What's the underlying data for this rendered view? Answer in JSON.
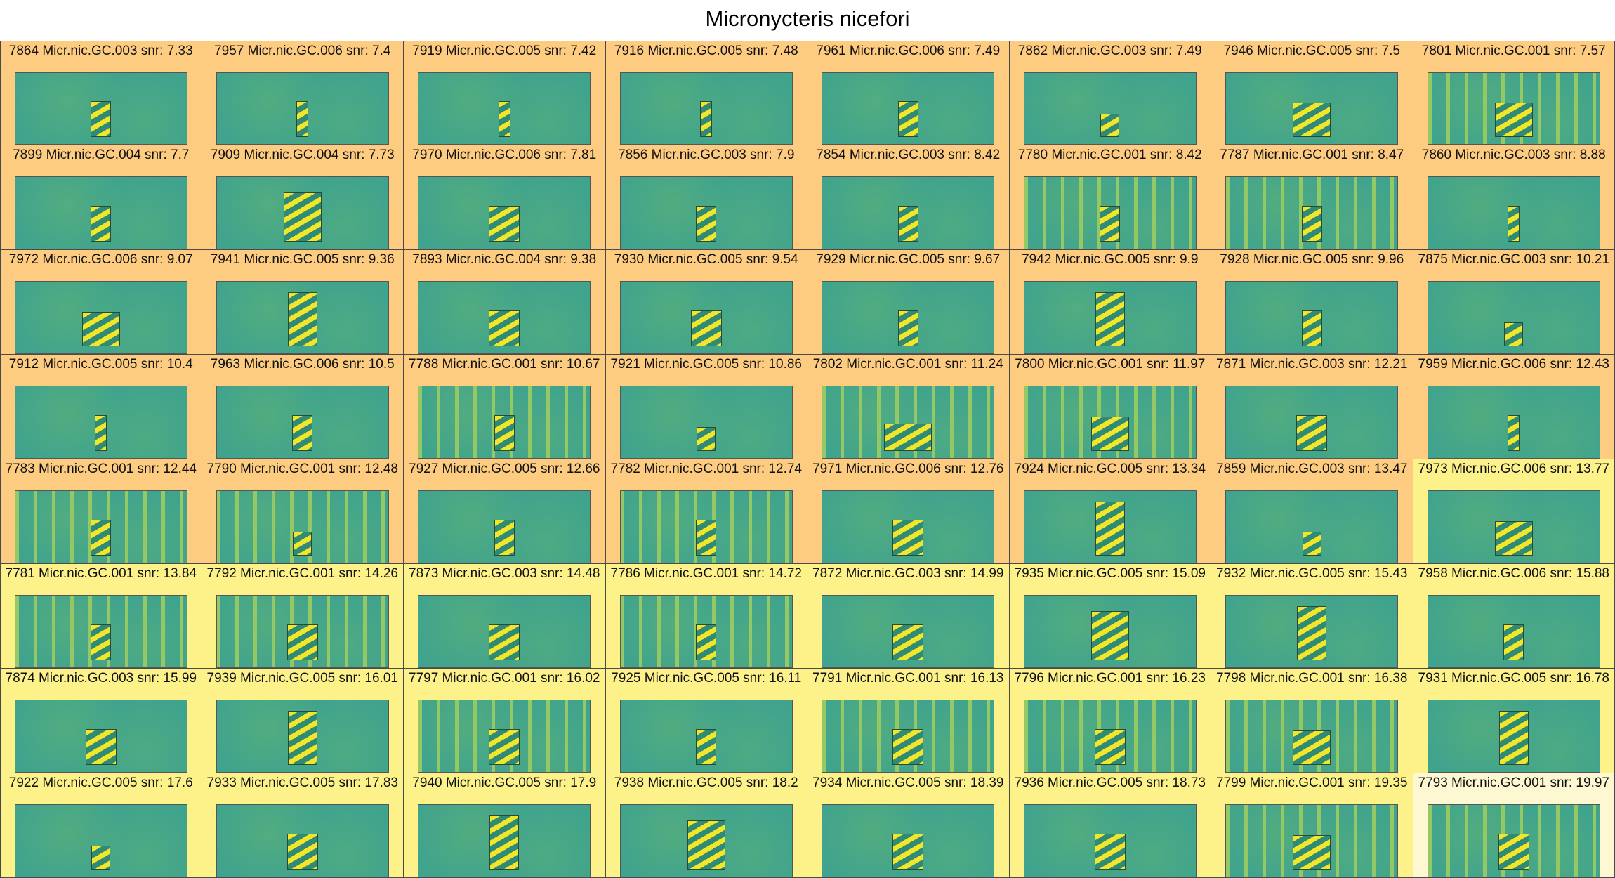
{
  "title": "Micronycteris nicefori",
  "colors": {
    "orange": "#fdcc80",
    "yellow": "#fdf28a",
    "light": "#fdf7d2",
    "spec_bg": "#3fa38d",
    "spec_fg": "#f2e62a"
  },
  "cells": [
    {
      "label": "7864 Micr.nic.GC.003 snr: 7.33",
      "bg": "orange",
      "box": "narrow",
      "lines": false
    },
    {
      "label": "7957 Micr.nic.GC.006 snr: 7.4",
      "bg": "orange",
      "box": "thin",
      "lines": false
    },
    {
      "label": "7919 Micr.nic.GC.005 snr: 7.42",
      "bg": "orange",
      "box": "thin",
      "lines": false
    },
    {
      "label": "7916 Micr.nic.GC.005 snr: 7.48",
      "bg": "orange",
      "box": "thin",
      "lines": false
    },
    {
      "label": "7961 Micr.nic.GC.006 snr: 7.49",
      "bg": "orange",
      "box": "narrow",
      "lines": false
    },
    {
      "label": "7862 Micr.nic.GC.003 snr: 7.49",
      "bg": "orange",
      "box": "small",
      "lines": false
    },
    {
      "label": "7946 Micr.nic.GC.005 snr: 7.5",
      "bg": "orange",
      "box": "wide",
      "lines": false
    },
    {
      "label": "7801 Micr.nic.GC.001 snr: 7.57",
      "bg": "orange",
      "box": "wide",
      "lines": true
    },
    {
      "label": "7899 Micr.nic.GC.004 snr: 7.7",
      "bg": "orange",
      "box": "narrow",
      "lines": false
    },
    {
      "label": "7909 Micr.nic.GC.004 snr: 7.73",
      "bg": "orange",
      "box": "big",
      "lines": false
    },
    {
      "label": "7970 Micr.nic.GC.006 snr: 7.81",
      "bg": "orange",
      "box": "medium",
      "lines": false
    },
    {
      "label": "7856 Micr.nic.GC.003 snr: 7.9",
      "bg": "orange",
      "box": "narrow",
      "lines": false
    },
    {
      "label": "7854 Micr.nic.GC.003 snr: 8.42",
      "bg": "orange",
      "box": "narrow",
      "lines": false
    },
    {
      "label": "7780 Micr.nic.GC.001 snr: 8.42",
      "bg": "orange",
      "box": "narrow",
      "lines": true
    },
    {
      "label": "7787 Micr.nic.GC.001 snr: 8.47",
      "bg": "orange",
      "box": "narrow",
      "lines": true
    },
    {
      "label": "7860 Micr.nic.GC.003 snr: 8.88",
      "bg": "orange",
      "box": "thin",
      "lines": false
    },
    {
      "label": "7972 Micr.nic.GC.006 snr: 9.07",
      "bg": "orange",
      "box": "wide",
      "lines": false
    },
    {
      "label": "7941 Micr.nic.GC.005 snr: 9.36",
      "bg": "orange",
      "box": "tall",
      "lines": false
    },
    {
      "label": "7893 Micr.nic.GC.004 snr: 9.38",
      "bg": "orange",
      "box": "medium",
      "lines": false
    },
    {
      "label": "7930 Micr.nic.GC.005 snr: 9.54",
      "bg": "orange",
      "box": "medium",
      "lines": false
    },
    {
      "label": "7929 Micr.nic.GC.005 snr: 9.67",
      "bg": "orange",
      "box": "narrow",
      "lines": false
    },
    {
      "label": "7942 Micr.nic.GC.005 snr: 9.9",
      "bg": "orange",
      "box": "tall",
      "lines": false
    },
    {
      "label": "7928 Micr.nic.GC.005 snr: 9.96",
      "bg": "orange",
      "box": "narrow",
      "lines": false
    },
    {
      "label": "7875 Micr.nic.GC.003 snr: 10.21",
      "bg": "orange",
      "box": "small",
      "lines": false
    },
    {
      "label": "7912 Micr.nic.GC.005 snr: 10.4",
      "bg": "orange",
      "box": "thin",
      "lines": false
    },
    {
      "label": "7963 Micr.nic.GC.006 snr: 10.5",
      "bg": "orange",
      "box": "narrow",
      "lines": false
    },
    {
      "label": "7788 Micr.nic.GC.001 snr: 10.67",
      "bg": "orange",
      "box": "narrow",
      "lines": true
    },
    {
      "label": "7921 Micr.nic.GC.005 snr: 10.86",
      "bg": "orange",
      "box": "small",
      "lines": false
    },
    {
      "label": "7802 Micr.nic.GC.001 snr: 11.24",
      "bg": "orange",
      "box": "verywide",
      "lines": true
    },
    {
      "label": "7800 Micr.nic.GC.001 snr: 11.97",
      "bg": "orange",
      "box": "wide",
      "lines": true
    },
    {
      "label": "7871 Micr.nic.GC.003 snr: 12.21",
      "bg": "orange",
      "box": "medium",
      "lines": false
    },
    {
      "label": "7959 Micr.nic.GC.006 snr: 12.43",
      "bg": "orange",
      "box": "thin",
      "lines": false
    },
    {
      "label": "7783 Micr.nic.GC.001 snr: 12.44",
      "bg": "orange",
      "box": "narrow",
      "lines": true
    },
    {
      "label": "7790 Micr.nic.GC.001 snr: 12.48",
      "bg": "orange",
      "box": "small",
      "lines": true
    },
    {
      "label": "7927 Micr.nic.GC.005 snr: 12.66",
      "bg": "orange",
      "box": "narrow",
      "lines": false
    },
    {
      "label": "7782 Micr.nic.GC.001 snr: 12.74",
      "bg": "orange",
      "box": "narrow",
      "lines": true
    },
    {
      "label": "7971 Micr.nic.GC.006 snr: 12.76",
      "bg": "orange",
      "box": "medium",
      "lines": false
    },
    {
      "label": "7924 Micr.nic.GC.005 snr: 13.34",
      "bg": "orange",
      "box": "tall",
      "lines": false
    },
    {
      "label": "7859 Micr.nic.GC.003 snr: 13.47",
      "bg": "orange",
      "box": "small",
      "lines": false
    },
    {
      "label": "7973 Micr.nic.GC.006 snr: 13.77",
      "bg": "yellow",
      "box": "wide",
      "lines": false
    },
    {
      "label": "7781 Micr.nic.GC.001 snr: 13.84",
      "bg": "yellow",
      "box": "narrow",
      "lines": true
    },
    {
      "label": "7792 Micr.nic.GC.001 snr: 14.26",
      "bg": "yellow",
      "box": "medium",
      "lines": true
    },
    {
      "label": "7873 Micr.nic.GC.003 snr: 14.48",
      "bg": "yellow",
      "box": "medium",
      "lines": false
    },
    {
      "label": "7786 Micr.nic.GC.001 snr: 14.72",
      "bg": "yellow",
      "box": "narrow",
      "lines": true
    },
    {
      "label": "7872 Micr.nic.GC.003 snr: 14.99",
      "bg": "yellow",
      "box": "medium",
      "lines": false
    },
    {
      "label": "7935 Micr.nic.GC.005 snr: 15.09",
      "bg": "yellow",
      "box": "big",
      "lines": false
    },
    {
      "label": "7932 Micr.nic.GC.005 snr: 15.43",
      "bg": "yellow",
      "box": "tall",
      "lines": false
    },
    {
      "label": "7958 Micr.nic.GC.006 snr: 15.88",
      "bg": "yellow",
      "box": "narrow",
      "lines": false
    },
    {
      "label": "7874 Micr.nic.GC.003 snr: 15.99",
      "bg": "yellow",
      "box": "medium",
      "lines": false
    },
    {
      "label": "7939 Micr.nic.GC.005 snr: 16.01",
      "bg": "yellow",
      "box": "tall",
      "lines": false
    },
    {
      "label": "7797 Micr.nic.GC.001 snr: 16.02",
      "bg": "yellow",
      "box": "medium",
      "lines": true
    },
    {
      "label": "7925 Micr.nic.GC.005 snr: 16.11",
      "bg": "yellow",
      "box": "narrow",
      "lines": false
    },
    {
      "label": "7791 Micr.nic.GC.001 snr: 16.13",
      "bg": "yellow",
      "box": "medium",
      "lines": true
    },
    {
      "label": "7796 Micr.nic.GC.001 snr: 16.23",
      "bg": "yellow",
      "box": "medium",
      "lines": true
    },
    {
      "label": "7798 Micr.nic.GC.001 snr: 16.38",
      "bg": "yellow",
      "box": "wide",
      "lines": true
    },
    {
      "label": "7931 Micr.nic.GC.005 snr: 16.78",
      "bg": "yellow",
      "box": "tall",
      "lines": false
    },
    {
      "label": "7922 Micr.nic.GC.005 snr: 17.6",
      "bg": "yellow",
      "box": "small",
      "lines": false
    },
    {
      "label": "7933 Micr.nic.GC.005 snr: 17.83",
      "bg": "yellow",
      "box": "medium",
      "lines": false
    },
    {
      "label": "7940 Micr.nic.GC.005 snr: 17.9",
      "bg": "yellow",
      "box": "tall",
      "lines": false
    },
    {
      "label": "7938 Micr.nic.GC.005 snr: 18.2",
      "bg": "yellow",
      "box": "big",
      "lines": false
    },
    {
      "label": "7934 Micr.nic.GC.005 snr: 18.39",
      "bg": "yellow",
      "box": "medium",
      "lines": false
    },
    {
      "label": "7936 Micr.nic.GC.005 snr: 18.73",
      "bg": "yellow",
      "box": "medium",
      "lines": false
    },
    {
      "label": "7799 Micr.nic.GC.001 snr: 19.35",
      "bg": "yellow",
      "box": "wide",
      "lines": true
    },
    {
      "label": "7793 Micr.nic.GC.001 snr: 19.97",
      "bg": "light",
      "box": "medium",
      "lines": true
    }
  ]
}
